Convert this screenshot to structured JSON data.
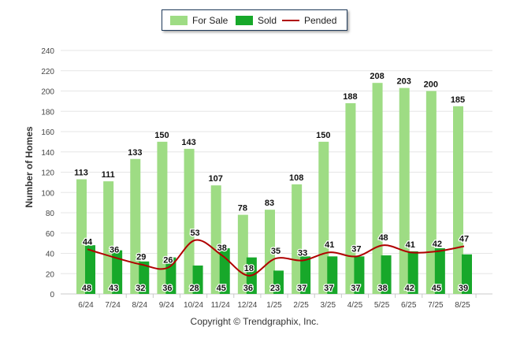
{
  "legend": {
    "for_sale": {
      "label": "For Sale",
      "color": "#9edc84"
    },
    "sold": {
      "label": "Sold",
      "color": "#17a82a"
    },
    "pended": {
      "label": "Pended",
      "color": "#b00000"
    }
  },
  "copyright": "Copyright © Trendgraphix, Inc.",
  "chart_data": {
    "type": "bar",
    "title": "",
    "xlabel": "",
    "ylabel": "Number of Homes",
    "ylim": [
      0,
      240
    ],
    "yticks": [
      0,
      20,
      40,
      60,
      80,
      100,
      120,
      140,
      160,
      180,
      200,
      220,
      240
    ],
    "grid": true,
    "legend_position": "top-center",
    "categories": [
      "6/24",
      "7/24",
      "8/24",
      "9/24",
      "10/24",
      "11/24",
      "12/24",
      "1/25",
      "2/25",
      "3/25",
      "4/25",
      "5/25",
      "6/25",
      "7/25",
      "8/25"
    ],
    "series": [
      {
        "name": "For Sale",
        "type": "bar",
        "values": [
          113,
          111,
          133,
          150,
          143,
          107,
          78,
          83,
          108,
          150,
          188,
          208,
          203,
          200,
          185
        ]
      },
      {
        "name": "Sold",
        "type": "bar",
        "values": [
          48,
          43,
          32,
          36,
          28,
          45,
          36,
          23,
          37,
          37,
          37,
          38,
          42,
          45,
          39
        ]
      },
      {
        "name": "Pended",
        "type": "line",
        "values": [
          44,
          36,
          29,
          26,
          53,
          38,
          18,
          35,
          33,
          41,
          37,
          48,
          41,
          42,
          47
        ]
      }
    ]
  }
}
